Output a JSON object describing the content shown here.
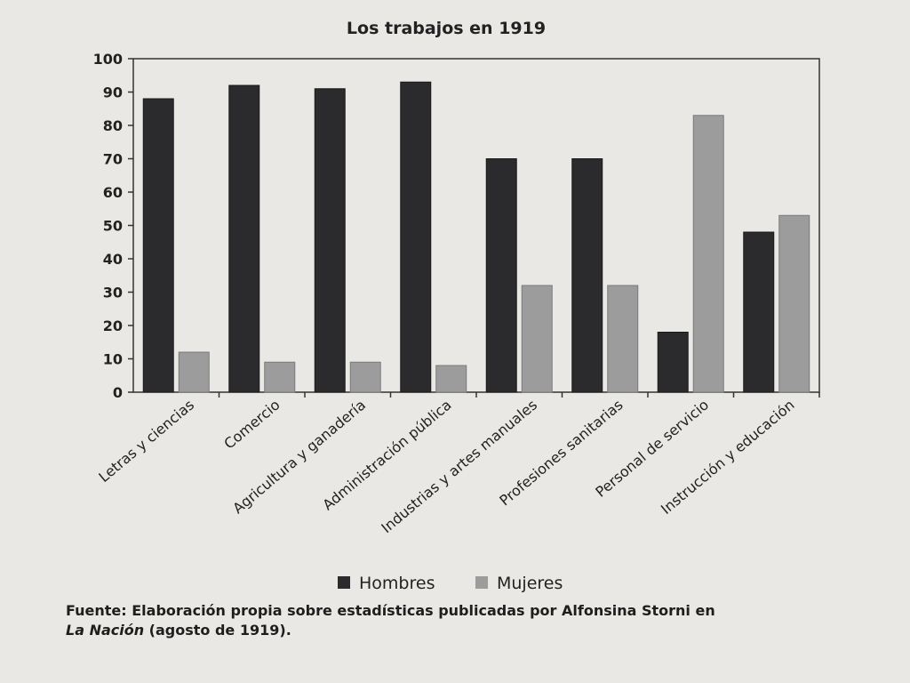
{
  "chart_data": {
    "type": "bar",
    "title": "Los trabajos en 1919",
    "categories": [
      "Letras y ciencias",
      "Comercio",
      "Agricultura y ganadería",
      "Administración pública",
      "Industrias y artes manuales",
      "Profesiones sanitarias",
      "Personal de servicio",
      "Instrucción y educación"
    ],
    "series": [
      {
        "name": "Hombres",
        "color": "#2b2b2d",
        "values": [
          88,
          92,
          91,
          93,
          70,
          70,
          18,
          48
        ]
      },
      {
        "name": "Mujeres",
        "color": "#9c9c9c",
        "values": [
          12,
          9,
          9,
          8,
          32,
          32,
          83,
          53
        ]
      }
    ],
    "ylim": [
      0,
      100
    ],
    "yticks": [
      0,
      10,
      20,
      30,
      40,
      50,
      60,
      70,
      80,
      90,
      100
    ],
    "legend_position": "bottom"
  },
  "source": {
    "prefix": "Fuente: Elaboración propia sobre estadísticas publicadas por Alfonsina Storni en",
    "publication": "La Nación",
    "suffix": " (agosto de 1919)."
  }
}
